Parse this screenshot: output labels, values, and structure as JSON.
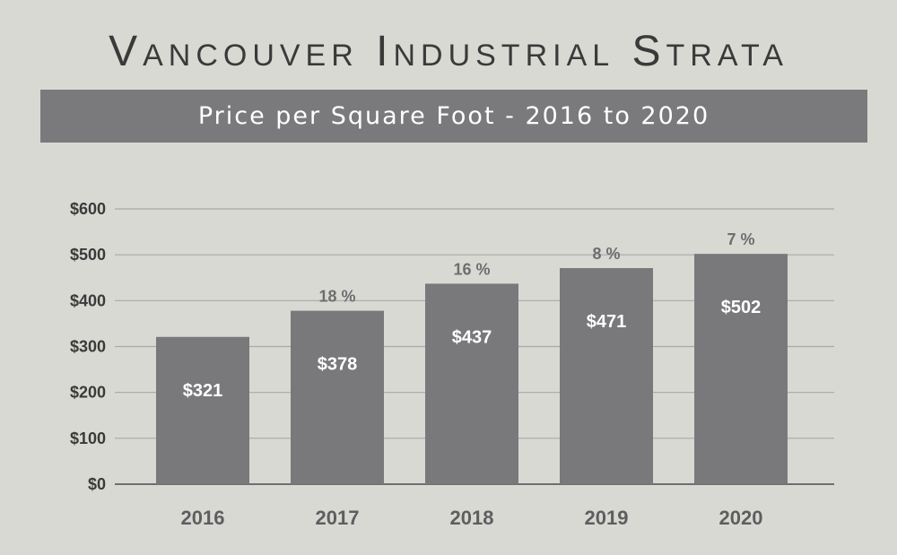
{
  "title": "Vancouver Industrial Strata",
  "subtitle": "Price per Square Foot - 2016 to 2020",
  "colors": {
    "bar": "#79797b",
    "grid": "#a8a8a8",
    "axis": "#6e6e70",
    "background": "#d9d9d4",
    "banner": "#7a7a7c"
  },
  "chart_data": {
    "type": "bar",
    "categories": [
      "2016",
      "2017",
      "2018",
      "2019",
      "2020"
    ],
    "values": [
      321,
      378,
      437,
      471,
      502
    ],
    "value_labels": [
      "$321",
      "$378",
      "$437",
      "$471",
      "$502"
    ],
    "change_labels": [
      "",
      "18 %",
      "16 %",
      "8 %",
      "7 %"
    ],
    "ylim": [
      0,
      600
    ],
    "yticks": [
      0,
      100,
      200,
      300,
      400,
      500,
      600
    ],
    "ytick_labels": [
      "$0",
      "$100",
      "$200",
      "$300",
      "$400",
      "$500",
      "$600"
    ],
    "grid": true,
    "legend": false
  }
}
